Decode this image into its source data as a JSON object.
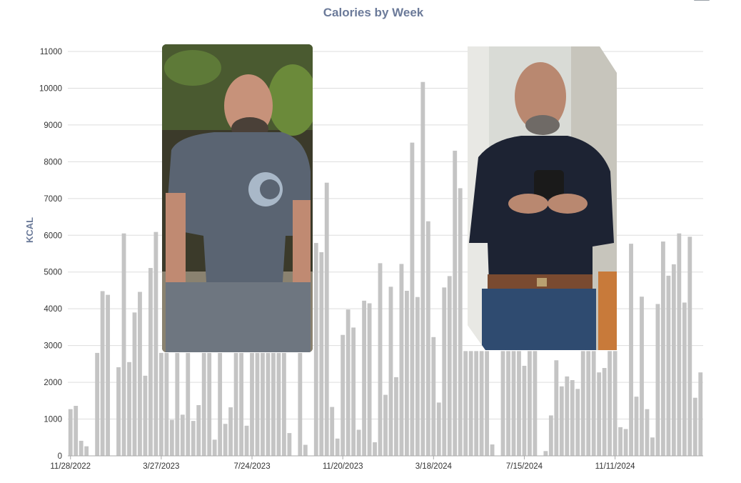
{
  "colors": {
    "title": "#6b7a99",
    "bar": "#c4c4c4",
    "grid": "#dddddd",
    "axis_line": "#aaaaaa",
    "photo_background": "#ffffff"
  },
  "icons": {
    "menu": "hamburger-menu-icon"
  },
  "photos": [
    {
      "name": "before-photo",
      "icon": "photo-icon"
    },
    {
      "name": "after-photo",
      "icon": "photo-icon"
    }
  ],
  "chart_data": {
    "type": "bar",
    "title": "Calories by Week",
    "xlabel": "",
    "ylabel": "KCAL",
    "ylim": [
      0,
      11000
    ],
    "yticks": [
      0,
      1000,
      2000,
      3000,
      4000,
      5000,
      6000,
      7000,
      8000,
      9000,
      10000,
      11000
    ],
    "x_tick_labels": [
      "11/28/2022",
      "3/27/2023",
      "7/24/2023",
      "11/20/2023",
      "3/18/2024",
      "7/15/2024",
      "11/11/2024"
    ],
    "x_tick_indices": [
      0,
      17,
      34,
      51,
      68,
      85,
      102
    ],
    "grid": true,
    "legend": "none",
    "categories_note": "weekly bins",
    "values": [
      1270,
      1360,
      410,
      260,
      0,
      2800,
      4480,
      4380,
      0,
      2410,
      6050,
      2550,
      3900,
      4460,
      2180,
      5110,
      6090,
      2800,
      2800,
      980,
      2800,
      1120,
      2800,
      950,
      1380,
      2800,
      2800,
      440,
      2800,
      870,
      1320,
      2800,
      2800,
      820,
      2800,
      2800,
      2800,
      2800,
      2800,
      2800,
      2800,
      620,
      0,
      2800,
      300,
      0,
      5790,
      5540,
      7430,
      1330,
      470,
      3290,
      3980,
      3490,
      710,
      4220,
      4150,
      370,
      5240,
      1660,
      4600,
      2140,
      5220,
      4490,
      8520,
      4320,
      10170,
      6380,
      3230,
      1450,
      4580,
      4890,
      8300,
      7280,
      2850,
      2850,
      2850,
      2850,
      2850,
      310,
      0,
      2850,
      2850,
      2850,
      2850,
      2450,
      2850,
      2850,
      0,
      130,
      1100,
      2600,
      1890,
      2160,
      2060,
      1820,
      2850,
      2850,
      2850,
      2270,
      2390,
      2850,
      2850,
      780,
      730,
      5770,
      1610,
      4330,
      1270,
      500,
      4130,
      5830,
      4900,
      5210,
      6050,
      4170,
      5960,
      1580,
      2270
    ]
  }
}
